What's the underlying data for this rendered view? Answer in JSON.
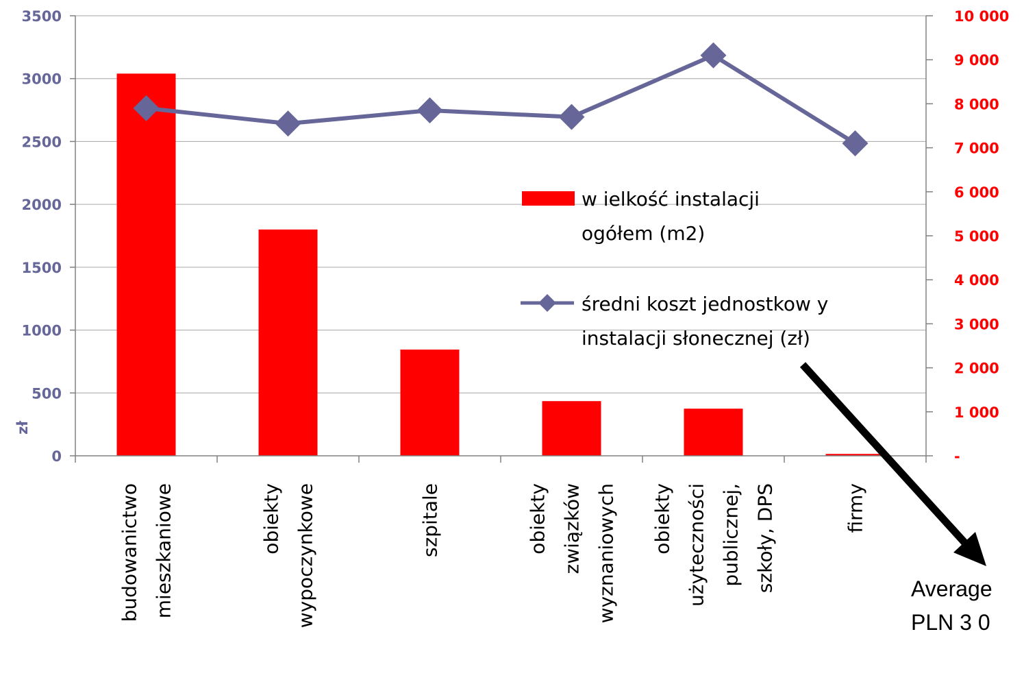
{
  "chart_data": {
    "type": "bar",
    "categories": [
      [
        "budowanictwo",
        "mieszkaniowe"
      ],
      [
        "obiekty",
        "wypoczynkowe"
      ],
      [
        "szpitale"
      ],
      [
        "obiekty",
        "związków",
        "wyznaniowych"
      ],
      [
        "obiekty",
        "użyteczności",
        "publicznej,",
        "szkoły, DPS"
      ],
      [
        "firmy"
      ]
    ],
    "series": [
      {
        "name": "wielkość instalacji ogółem (m2)",
        "type": "bar",
        "axis": "left",
        "values": [
          3040,
          1800,
          845,
          435,
          375,
          15
        ],
        "color": "#ff0000"
      },
      {
        "name": "średni koszt jednostkowy instalacji słonecznej (zł)",
        "type": "line",
        "axis": "right",
        "values": [
          7900,
          7550,
          7850,
          7700,
          9100,
          7100
        ],
        "color": "#666699"
      }
    ],
    "y_left": {
      "label": "zł",
      "range": [
        0,
        3500
      ],
      "ticks": [
        "0",
        "500",
        "1000",
        "1500",
        "2000",
        "2500",
        "3000",
        "3500"
      ],
      "color": "#666699"
    },
    "y_right": {
      "range": [
        0,
        10000
      ],
      "ticks": [
        "-",
        "1 000",
        "2 000",
        "3 000",
        "4 000",
        "5 000",
        "6 000",
        "7 000",
        "8 000",
        "9 000",
        "10 000"
      ],
      "color": "#ff0000"
    },
    "legend": {
      "placement": "center-right",
      "bar_label_lines": [
        "w ielkość instalacji",
        "ogółem (m2)"
      ],
      "line_label_lines": [
        "średni koszt jednostkow y",
        "instalacji słonecznej (zł)"
      ]
    },
    "grid": true,
    "annotation": {
      "lines": [
        "Average",
        "PLN 3 0"
      ]
    }
  },
  "colors": {
    "bar": "#ff0000",
    "line": "#666699",
    "grid": "#a6a6a6",
    "axis": "#808080",
    "arrow": "#000000"
  }
}
